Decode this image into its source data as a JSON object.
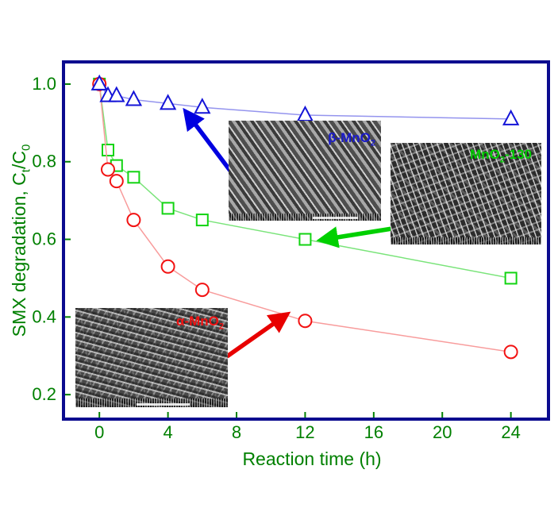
{
  "figure": {
    "xlabel": "Reaction time (h)",
    "ylabel": {
      "prefix": "SMX degradation, C",
      "sub1": "t",
      "mid": "/C",
      "sub2": "0"
    },
    "text_color": "#008000",
    "frame_color": "#0b0b8f",
    "background": "#ffffff"
  },
  "chart_data": {
    "type": "line",
    "title": "",
    "xlabel": "Reaction time (h)",
    "ylabel": "SMX degradation, Ct/C0",
    "xlim": [
      -2,
      26.1
    ],
    "ylim": [
      0.141,
      1.053
    ],
    "x_ticks": [
      0,
      4,
      8,
      12,
      16,
      20,
      24
    ],
    "y_ticks": [
      1.0,
      0.8,
      0.6,
      0.4,
      0.2
    ],
    "grid": false,
    "legend_position": "none (series identified by colored arrows to labeled SEM insets)",
    "x": [
      0,
      0.5,
      1,
      2,
      4,
      6,
      12,
      24
    ],
    "series": [
      {
        "name": "β-MnO2",
        "marker": "triangle",
        "marker_color": "#1414d8",
        "line_color": "#9494ee",
        "values": [
          1.0,
          0.97,
          0.97,
          0.96,
          0.95,
          0.94,
          0.92,
          0.91
        ]
      },
      {
        "name": "MnO2-130",
        "marker": "square",
        "marker_color": "#12d412",
        "line_color": "#7ae47a",
        "values": [
          1.0,
          0.83,
          0.79,
          0.76,
          0.68,
          0.65,
          0.6,
          0.5
        ]
      },
      {
        "name": "α-MnO2",
        "marker": "circle",
        "marker_color": "#f21212",
        "line_color": "#f89c9c",
        "values": [
          1.0,
          0.78,
          0.75,
          0.65,
          0.53,
          0.47,
          0.39,
          0.31
        ]
      }
    ]
  },
  "insets": [
    {
      "label_prefix": "β-MnO",
      "label_sub": "2",
      "label_suffix": "",
      "label_color": "#1a1acc",
      "points_to_series": "β-MnO2"
    },
    {
      "label_prefix": "MnO",
      "label_sub": "2",
      "label_suffix": "-130",
      "label_color": "#00cc00",
      "points_to_series": "MnO2-130"
    },
    {
      "label_prefix": "α-MnO",
      "label_sub": "2",
      "label_suffix": "",
      "label_color": "#ee1111",
      "points_to_series": "α-MnO2"
    }
  ],
  "annotation_arrows": [
    {
      "color": "#0000e0",
      "targets_series": "β-MnO2"
    },
    {
      "color": "#00d000",
      "targets_series": "MnO2-130"
    },
    {
      "color": "#e80000",
      "targets_series": "α-MnO2"
    }
  ]
}
